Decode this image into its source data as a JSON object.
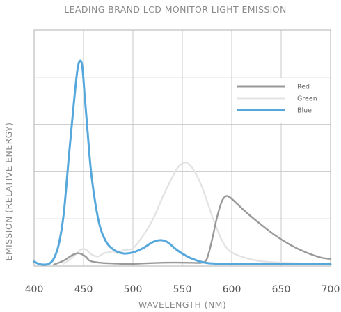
{
  "chart_data": {
    "type": "line",
    "title": "LEADING BRAND LCD MONITOR LIGHT EMISSION",
    "xlabel": "WAVELENGTH (NM)",
    "ylabel": "EMISSION (RELATIVE ENERGY)",
    "xlim": [
      400,
      700
    ],
    "ylim": [
      0,
      1.0
    ],
    "xticks": [
      400,
      450,
      500,
      550,
      600,
      650,
      700
    ],
    "grid": true,
    "legend": "top-right",
    "series": [
      {
        "name": "Red",
        "color": "#999999",
        "x": [
          420,
          430,
          440,
          446,
          452,
          456,
          462,
          470,
          480,
          490,
          500,
          520,
          540,
          560,
          570,
          575,
          580,
          585,
          590,
          594,
          598,
          605,
          615,
          630,
          645,
          660,
          675,
          690,
          700
        ],
        "y": [
          0.0,
          0.02,
          0.05,
          0.055,
          0.04,
          0.02,
          0.012,
          0.008,
          0.006,
          0.004,
          0.004,
          0.008,
          0.01,
          0.009,
          0.01,
          0.03,
          0.12,
          0.23,
          0.31,
          0.335,
          0.33,
          0.3,
          0.255,
          0.195,
          0.14,
          0.095,
          0.06,
          0.035,
          0.028
        ]
      },
      {
        "name": "Green",
        "color": "#e3e3e3",
        "x": [
          430,
          440,
          446,
          452,
          458,
          465,
          470,
          475,
          480,
          485,
          490,
          500,
          510,
          520,
          530,
          540,
          546,
          552,
          556,
          562,
          570,
          580,
          590,
          600,
          620,
          640,
          660,
          680,
          700
        ],
        "y": [
          0.005,
          0.04,
          0.07,
          0.075,
          0.05,
          0.04,
          0.055,
          0.06,
          0.065,
          0.055,
          0.07,
          0.08,
          0.14,
          0.22,
          0.33,
          0.43,
          0.48,
          0.5,
          0.495,
          0.46,
          0.38,
          0.24,
          0.12,
          0.06,
          0.025,
          0.012,
          0.008,
          0.005,
          0.004
        ]
      },
      {
        "name": "Blue",
        "color": "#56a8dc",
        "x": [
          400,
          405,
          410,
          415,
          420,
          425,
          430,
          435,
          440,
          444,
          447,
          449,
          451,
          454,
          458,
          465,
          472,
          480,
          490,
          500,
          510,
          520,
          528,
          535,
          545,
          555,
          565,
          575,
          590,
          610,
          640,
          670,
          700
        ],
        "y": [
          0.015,
          0.003,
          0.0,
          0.004,
          0.03,
          0.1,
          0.25,
          0.52,
          0.78,
          0.96,
          1.0,
          0.96,
          0.84,
          0.66,
          0.44,
          0.22,
          0.12,
          0.075,
          0.055,
          0.06,
          0.08,
          0.11,
          0.12,
          0.11,
          0.07,
          0.04,
          0.02,
          0.008,
          0.004,
          0.003,
          0.003,
          0.002,
          0.002
        ]
      }
    ]
  }
}
